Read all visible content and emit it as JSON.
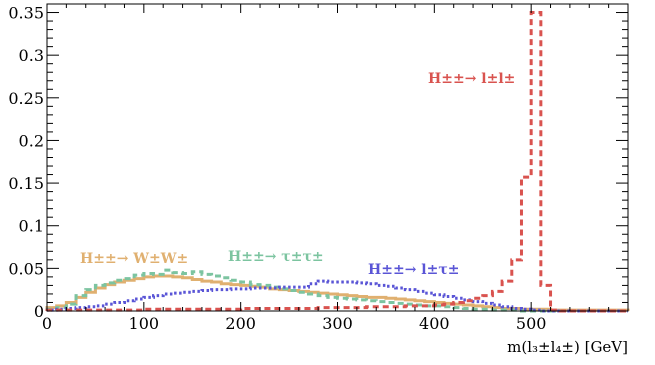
{
  "chart_data": {
    "type": "line",
    "style": "step-histogram",
    "xlabel": "m(l₃±l₄±) [GeV]",
    "ylabel": "",
    "xlim": [
      0,
      600
    ],
    "ylim": [
      0,
      0.36
    ],
    "grid": false,
    "x_ticks": [
      0,
      100,
      200,
      300,
      400,
      500
    ],
    "y_ticks": [
      0,
      0.05,
      0.1,
      0.15,
      0.2,
      0.25,
      0.3,
      0.35
    ],
    "x_tick_labels": [
      "0",
      "100",
      "200",
      "300",
      "400",
      "500"
    ],
    "y_tick_labels": [
      "0",
      "0.05",
      "0.1",
      "0.15",
      "0.2",
      "0.25",
      "0.3",
      "0.35"
    ],
    "bin_edges_start": 0,
    "bin_width": 10,
    "series": [
      {
        "name": "H±±→ l±l±",
        "color": "#d9534f",
        "dash": "dashed",
        "values": [
          0.001,
          0.001,
          0.001,
          0.001,
          0.001,
          0.001,
          0.001,
          0.001,
          0.001,
          0.001,
          0.002,
          0.002,
          0.002,
          0.002,
          0.002,
          0.002,
          0.002,
          0.002,
          0.002,
          0.002,
          0.003,
          0.003,
          0.003,
          0.003,
          0.003,
          0.003,
          0.003,
          0.003,
          0.004,
          0.004,
          0.004,
          0.004,
          0.004,
          0.005,
          0.005,
          0.005,
          0.005,
          0.006,
          0.006,
          0.006,
          0.007,
          0.008,
          0.01,
          0.012,
          0.015,
          0.018,
          0.023,
          0.035,
          0.06,
          0.157,
          0.35,
          0.03,
          0.001,
          0,
          0,
          0,
          0,
          0,
          0,
          0
        ]
      },
      {
        "name": "H±±→ l±τ±",
        "color": "#5a55d6",
        "dash": "dotted",
        "values": [
          0.001,
          0.002,
          0.003,
          0.004,
          0.005,
          0.006,
          0.008,
          0.01,
          0.012,
          0.014,
          0.016,
          0.018,
          0.02,
          0.021,
          0.022,
          0.023,
          0.024,
          0.025,
          0.025,
          0.026,
          0.026,
          0.027,
          0.027,
          0.027,
          0.028,
          0.028,
          0.028,
          0.032,
          0.035,
          0.034,
          0.034,
          0.034,
          0.033,
          0.032,
          0.03,
          0.029,
          0.027,
          0.025,
          0.023,
          0.021,
          0.019,
          0.017,
          0.015,
          0.013,
          0.011,
          0.009,
          0.007,
          0.005,
          0.003,
          0.002,
          0.001,
          0,
          0,
          0,
          0,
          0,
          0,
          0,
          0,
          0
        ]
      },
      {
        "name": "H±±→ τ±τ±",
        "color": "#7cc4a0",
        "dash": "dashed",
        "values": [
          0.002,
          0.004,
          0.008,
          0.018,
          0.025,
          0.03,
          0.033,
          0.036,
          0.038,
          0.042,
          0.044,
          0.043,
          0.048,
          0.045,
          0.044,
          0.046,
          0.043,
          0.041,
          0.039,
          0.036,
          0.034,
          0.031,
          0.03,
          0.028,
          0.026,
          0.024,
          0.022,
          0.02,
          0.018,
          0.016,
          0.015,
          0.014,
          0.013,
          0.012,
          0.011,
          0.01,
          0.009,
          0.008,
          0.007,
          0.006,
          0.006,
          0.005,
          0.004,
          0.003,
          0.002,
          0.002,
          0.001,
          0.001,
          0.001,
          0,
          0,
          0,
          0,
          0,
          0,
          0,
          0,
          0,
          0,
          0
        ]
      },
      {
        "name": "H±±→ W±W±",
        "color": "#e0b070",
        "dash": "solid",
        "values": [
          0.004,
          0.006,
          0.01,
          0.016,
          0.022,
          0.027,
          0.031,
          0.034,
          0.036,
          0.038,
          0.04,
          0.041,
          0.041,
          0.04,
          0.039,
          0.037,
          0.035,
          0.034,
          0.032,
          0.031,
          0.03,
          0.029,
          0.028,
          0.026,
          0.025,
          0.024,
          0.023,
          0.022,
          0.021,
          0.02,
          0.019,
          0.018,
          0.017,
          0.016,
          0.016,
          0.015,
          0.014,
          0.013,
          0.012,
          0.011,
          0.01,
          0.009,
          0.008,
          0.007,
          0.006,
          0.005,
          0.004,
          0.003,
          0.003,
          0.002,
          0.002,
          0.002,
          0.001,
          0.001,
          0.001,
          0.001,
          0.001,
          0.001,
          0.001,
          0.001
        ]
      }
    ]
  }
}
